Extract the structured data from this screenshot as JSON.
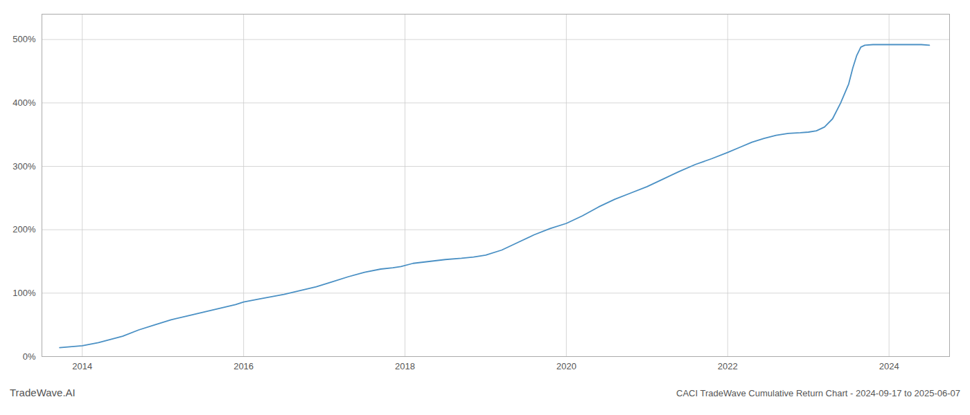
{
  "chart_data": {
    "type": "line",
    "title": "CACI TradeWave Cumulative Return Chart - 2024-09-17 to 2025-06-07",
    "annotations": [
      "TradeWave.AI"
    ],
    "color": "#4a90c4",
    "grid": true,
    "xlim": [
      2013.5,
      2024.75
    ],
    "xticks": [
      2014,
      2016,
      2018,
      2020,
      2022,
      2024
    ],
    "ylim": [
      0,
      540
    ],
    "yticks": [
      {
        "value": 0,
        "label": "0%"
      },
      {
        "value": 100,
        "label": "100%"
      },
      {
        "value": 200,
        "label": "200%"
      },
      {
        "value": 300,
        "label": "300%"
      },
      {
        "value": 400,
        "label": "400%"
      },
      {
        "value": 500,
        "label": "500%"
      }
    ],
    "x": [
      2013.72,
      2014.0,
      2014.2,
      2014.5,
      2014.7,
      2014.9,
      2015.1,
      2015.3,
      2015.5,
      2015.7,
      2015.9,
      2016.0,
      2016.2,
      2016.5,
      2016.7,
      2016.9,
      2017.1,
      2017.3,
      2017.5,
      2017.7,
      2017.85,
      2017.95,
      2018.1,
      2018.3,
      2018.5,
      2018.7,
      2018.85,
      2019.0,
      2019.2,
      2019.4,
      2019.6,
      2019.8,
      2020.0,
      2020.2,
      2020.4,
      2020.6,
      2020.8,
      2021.0,
      2021.2,
      2021.4,
      2021.6,
      2021.8,
      2022.0,
      2022.15,
      2022.3,
      2022.45,
      2022.6,
      2022.75,
      2022.9,
      2023.0,
      2023.1,
      2023.2,
      2023.3,
      2023.4,
      2023.5,
      2023.55,
      2023.6,
      2023.65,
      2023.7,
      2023.8,
      2024.0,
      2024.2,
      2024.4,
      2024.5
    ],
    "values": [
      14,
      17,
      22,
      32,
      42,
      50,
      58,
      64,
      70,
      76,
      82,
      86,
      91,
      98,
      104,
      110,
      118,
      126,
      133,
      138,
      140,
      142,
      147,
      150,
      153,
      155,
      157,
      160,
      168,
      180,
      192,
      202,
      210,
      222,
      236,
      248,
      258,
      268,
      280,
      292,
      303,
      312,
      322,
      330,
      338,
      344,
      349,
      352,
      353,
      354,
      356,
      362,
      375,
      400,
      430,
      455,
      475,
      488,
      491,
      492,
      492,
      492,
      492,
      491
    ]
  }
}
